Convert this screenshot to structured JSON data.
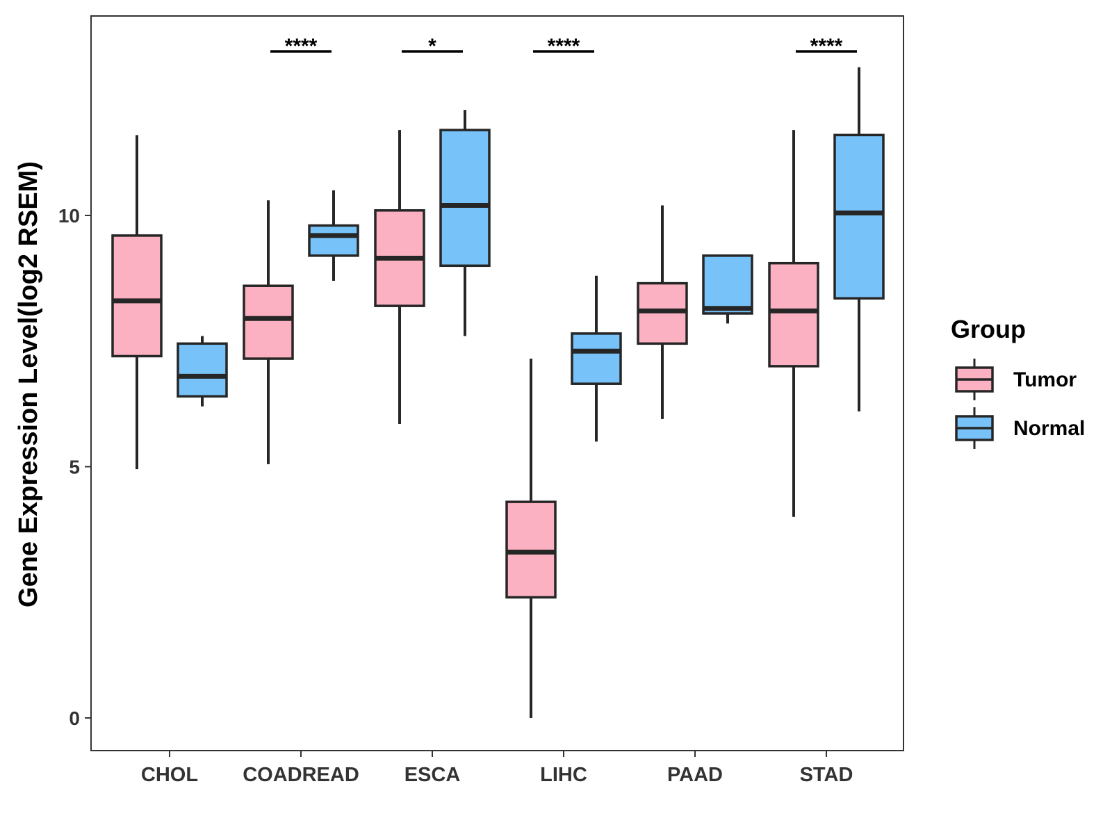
{
  "chart_data": {
    "type": "boxplot",
    "title": "",
    "xlabel": "",
    "ylabel": "Gene Expression Level(log2 RSEM)",
    "ylim": [
      -0.65,
      14.0
    ],
    "yticks": [
      0,
      5,
      10
    ],
    "ytick_labels": [
      "0",
      "5",
      "10"
    ],
    "grid": false,
    "categories": [
      "CHOL",
      "COADREAD",
      "ESCA",
      "LIHC",
      "PAAD",
      "STAD"
    ],
    "legend": {
      "title": "Group",
      "position": "right",
      "entries": [
        {
          "name": "Tumor",
          "color": "#FBB1C2"
        },
        {
          "name": "Normal",
          "color": "#77C2F8"
        }
      ]
    },
    "series": [
      {
        "name": "Tumor",
        "color": "#FBB1C2",
        "boxes": [
          {
            "category": "CHOL",
            "min": 4.95,
            "q1": 7.2,
            "median": 8.3,
            "q3": 9.6,
            "max": 11.6
          },
          {
            "category": "COADREAD",
            "min": 5.05,
            "q1": 7.15,
            "median": 7.95,
            "q3": 8.6,
            "max": 10.3
          },
          {
            "category": "ESCA",
            "min": 5.85,
            "q1": 8.2,
            "median": 9.15,
            "q3": 10.1,
            "max": 11.7
          },
          {
            "category": "LIHC",
            "min": 0.0,
            "q1": 2.4,
            "median": 3.3,
            "q3": 4.3,
            "max": 7.15
          },
          {
            "category": "PAAD",
            "min": 5.95,
            "q1": 7.45,
            "median": 8.1,
            "q3": 8.65,
            "max": 10.2
          },
          {
            "category": "STAD",
            "min": 4.0,
            "q1": 7.0,
            "median": 8.1,
            "q3": 9.05,
            "max": 11.7
          }
        ]
      },
      {
        "name": "Normal",
        "color": "#77C2F8",
        "boxes": [
          {
            "category": "CHOL",
            "min": 6.2,
            "q1": 6.4,
            "median": 6.8,
            "q3": 7.45,
            "max": 7.6
          },
          {
            "category": "COADREAD",
            "min": 8.7,
            "q1": 9.2,
            "median": 9.6,
            "q3": 9.8,
            "max": 10.5
          },
          {
            "category": "ESCA",
            "min": 7.6,
            "q1": 9.0,
            "median": 10.2,
            "q3": 11.7,
            "max": 12.1
          },
          {
            "category": "LIHC",
            "min": 5.5,
            "q1": 6.65,
            "median": 7.3,
            "q3": 7.65,
            "max": 8.8
          },
          {
            "category": "PAAD",
            "min": 7.85,
            "q1": 8.05,
            "median": 8.15,
            "q3": 9.2,
            "max": 9.2
          },
          {
            "category": "STAD",
            "min": 6.1,
            "q1": 8.35,
            "median": 10.05,
            "q3": 11.6,
            "max": 12.95
          }
        ]
      }
    ],
    "annotations": [
      {
        "category": "COADREAD",
        "label": "****"
      },
      {
        "category": "ESCA",
        "label": "*"
      },
      {
        "category": "LIHC",
        "label": "****"
      },
      {
        "category": "STAD",
        "label": "****"
      }
    ]
  }
}
